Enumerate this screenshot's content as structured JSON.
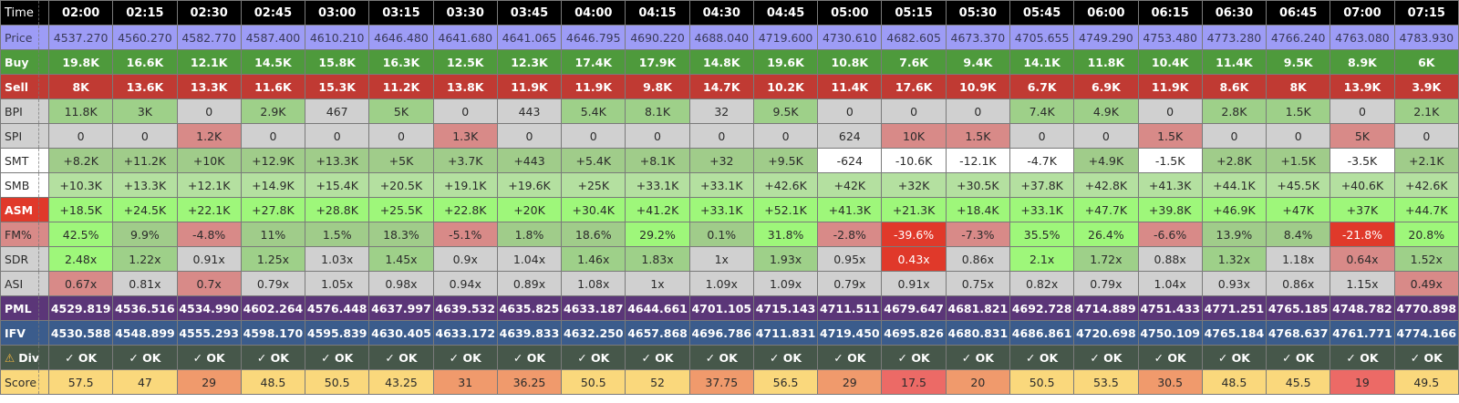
{
  "labels": {
    "time": "Time",
    "price": "Price",
    "buy": "Buy",
    "sell": "Sell",
    "bpi": "BPI",
    "spi": "SPI",
    "smt": "SMT",
    "smb": "SMB",
    "asm": "ASM",
    "fm": "FM%",
    "sdr": "SDR",
    "asi": "ASI",
    "pml": "PML",
    "ifv": "IFV",
    "div": "Div",
    "div_icon": "⚠",
    "score": "Score"
  },
  "time": [
    "02:00",
    "02:15",
    "02:30",
    "02:45",
    "03:00",
    "03:15",
    "03:30",
    "03:45",
    "04:00",
    "04:15",
    "04:30",
    "04:45",
    "05:00",
    "05:15",
    "05:30",
    "05:45",
    "06:00",
    "06:15",
    "06:30",
    "06:45",
    "07:00",
    "07:15"
  ],
  "price": [
    "4537.270",
    "4560.270",
    "4582.770",
    "4587.400",
    "4610.210",
    "4646.480",
    "4641.680",
    "4641.065",
    "4646.795",
    "4690.220",
    "4688.040",
    "4719.600",
    "4730.610",
    "4682.605",
    "4673.370",
    "4705.655",
    "4749.290",
    "4753.480",
    "4773.280",
    "4766.240",
    "4763.080",
    "4783.930"
  ],
  "buy": [
    "19.8K",
    "16.6K",
    "12.1K",
    "14.5K",
    "15.8K",
    "16.3K",
    "12.5K",
    "12.3K",
    "17.4K",
    "17.9K",
    "14.8K",
    "19.6K",
    "10.8K",
    "7.6K",
    "9.4K",
    "14.1K",
    "11.8K",
    "10.4K",
    "11.4K",
    "9.5K",
    "8.9K",
    "6K"
  ],
  "sell": [
    "8K",
    "13.6K",
    "13.3K",
    "11.6K",
    "15.3K",
    "11.2K",
    "13.8K",
    "11.9K",
    "11.9K",
    "9.8K",
    "14.7K",
    "10.2K",
    "11.4K",
    "17.6K",
    "10.9K",
    "6.7K",
    "6.9K",
    "11.9K",
    "8.6K",
    "8K",
    "13.9K",
    "3.9K"
  ],
  "bpi": [
    "11.8K",
    "3K",
    "0",
    "2.9K",
    "467",
    "5K",
    "0",
    "443",
    "5.4K",
    "8.1K",
    "32",
    "9.5K",
    "0",
    "0",
    "0",
    "7.4K",
    "4.9K",
    "0",
    "2.8K",
    "1.5K",
    "0",
    "2.1K"
  ],
  "bpi_color": [
    "g-lgreen",
    "g-lgreen",
    "g-gray",
    "g-lgreen",
    "g-gray",
    "g-lgreen",
    "g-gray",
    "g-gray",
    "g-lgreen",
    "g-lgreen",
    "g-gray",
    "g-lgreen",
    "g-gray",
    "g-gray",
    "g-gray",
    "g-lgreen",
    "g-lgreen",
    "g-gray",
    "g-lgreen",
    "g-lgreen",
    "g-gray",
    "g-lgreen"
  ],
  "spi": [
    "0",
    "0",
    "1.2K",
    "0",
    "0",
    "0",
    "1.3K",
    "0",
    "0",
    "0",
    "0",
    "0",
    "624",
    "10K",
    "1.5K",
    "0",
    "0",
    "1.5K",
    "0",
    "0",
    "5K",
    "0"
  ],
  "spi_color": [
    "g-gray",
    "g-gray",
    "g-pink",
    "g-gray",
    "g-gray",
    "g-gray",
    "g-pink",
    "g-gray",
    "g-gray",
    "g-gray",
    "g-gray",
    "g-gray",
    "g-gray",
    "g-pink",
    "g-pink",
    "g-gray",
    "g-gray",
    "g-pink",
    "g-gray",
    "g-gray",
    "g-pink",
    "g-gray"
  ],
  "smt": [
    "+8.2K",
    "+11.2K",
    "+10K",
    "+12.9K",
    "+13.3K",
    "+5K",
    "+3.7K",
    "+443",
    "+5.4K",
    "+8.1K",
    "+32",
    "+9.5K",
    "-624",
    "-10.6K",
    "-12.1K",
    "-4.7K",
    "+4.9K",
    "-1.5K",
    "+2.8K",
    "+1.5K",
    "-3.5K",
    "+2.1K"
  ],
  "smt_color": [
    "g-mid",
    "g-mid",
    "g-mid",
    "g-mid",
    "g-mid",
    "g-mid",
    "g-mid",
    "g-mid",
    "g-mid",
    "g-mid",
    "g-mid",
    "g-mid",
    "g-white",
    "g-white",
    "g-white",
    "g-white",
    "g-mid",
    "g-white",
    "g-mid",
    "g-mid",
    "g-white",
    "g-mid"
  ],
  "smb": [
    "+10.3K",
    "+13.3K",
    "+12.1K",
    "+14.9K",
    "+15.4K",
    "+20.5K",
    "+19.1K",
    "+19.6K",
    "+25K",
    "+33.1K",
    "+33.1K",
    "+42.6K",
    "+42K",
    "+32K",
    "+30.5K",
    "+37.8K",
    "+42.8K",
    "+41.3K",
    "+44.1K",
    "+45.5K",
    "+40.6K",
    "+42.6K"
  ],
  "asm": [
    "+18.5K",
    "+24.5K",
    "+22.1K",
    "+27.8K",
    "+28.8K",
    "+25.5K",
    "+22.8K",
    "+20K",
    "+30.4K",
    "+41.2K",
    "+33.1K",
    "+52.1K",
    "+41.3K",
    "+21.3K",
    "+18.4K",
    "+33.1K",
    "+47.7K",
    "+39.8K",
    "+46.9K",
    "+47K",
    "+37K",
    "+44.7K"
  ],
  "fm": [
    "42.5%",
    "9.9%",
    "-4.8%",
    "11%",
    "1.5%",
    "18.3%",
    "-5.1%",
    "1.8%",
    "18.6%",
    "29.2%",
    "0.1%",
    "31.8%",
    "-2.8%",
    "-39.6%",
    "-7.3%",
    "35.5%",
    "26.4%",
    "-6.6%",
    "13.9%",
    "8.4%",
    "-21.8%",
    "20.8%"
  ],
  "fm_color": [
    "g-bright",
    "g-mid",
    "g-pink",
    "g-mid",
    "g-mid",
    "g-mid",
    "g-pink",
    "g-mid",
    "g-mid",
    "g-bright",
    "g-mid",
    "g-bright",
    "g-pink",
    "g-red",
    "g-pink",
    "g-bright",
    "g-bright",
    "g-pink",
    "g-mid",
    "g-mid",
    "g-red",
    "g-bright"
  ],
  "sdr": [
    "2.48x",
    "1.22x",
    "0.91x",
    "1.25x",
    "1.03x",
    "1.45x",
    "0.9x",
    "1.04x",
    "1.46x",
    "1.83x",
    "1x",
    "1.93x",
    "0.95x",
    "0.43x",
    "0.86x",
    "2.1x",
    "1.72x",
    "0.88x",
    "1.32x",
    "1.18x",
    "0.64x",
    "1.52x"
  ],
  "sdr_color": [
    "g-bright",
    "g-lgreen",
    "g-gray",
    "g-lgreen",
    "g-gray",
    "g-lgreen",
    "g-gray",
    "g-gray",
    "g-lgreen",
    "g-lgreen",
    "g-gray",
    "g-lgreen",
    "g-gray",
    "g-red",
    "g-gray",
    "g-bright",
    "g-lgreen",
    "g-gray",
    "g-lgreen",
    "g-gray",
    "g-pink",
    "g-lgreen"
  ],
  "asi": [
    "0.67x",
    "0.81x",
    "0.7x",
    "0.79x",
    "1.05x",
    "0.98x",
    "0.94x",
    "0.89x",
    "1.08x",
    "1x",
    "1.09x",
    "1.09x",
    "0.79x",
    "0.91x",
    "0.75x",
    "0.82x",
    "0.79x",
    "1.04x",
    "0.93x",
    "0.86x",
    "1.15x",
    "0.49x"
  ],
  "asi_color": [
    "g-pink",
    "g-gray",
    "g-pink",
    "g-gray",
    "g-gray",
    "g-gray",
    "g-gray",
    "g-gray",
    "g-gray",
    "g-gray",
    "g-gray",
    "g-gray",
    "g-gray",
    "g-gray",
    "g-gray",
    "g-gray",
    "g-gray",
    "g-gray",
    "g-gray",
    "g-gray",
    "g-gray",
    "g-pink"
  ],
  "pml": [
    "4529.819",
    "4536.516",
    "4534.990",
    "4602.264",
    "4576.448",
    "4637.997",
    "4639.532",
    "4635.825",
    "4633.187",
    "4644.661",
    "4701.105",
    "4715.143",
    "4711.511",
    "4679.647",
    "4681.821",
    "4692.728",
    "4714.889",
    "4751.433",
    "4771.251",
    "4765.185",
    "4748.782",
    "4770.898"
  ],
  "ifv": [
    "4530.588",
    "4548.899",
    "4555.293",
    "4598.170",
    "4595.839",
    "4630.405",
    "4633.172",
    "4639.833",
    "4632.250",
    "4657.868",
    "4696.786",
    "4711.831",
    "4719.450",
    "4695.826",
    "4680.831",
    "4686.861",
    "4720.698",
    "4750.109",
    "4765.184",
    "4768.637",
    "4761.771",
    "4774.166"
  ],
  "div": [
    "✓ OK",
    "✓ OK",
    "✓ OK",
    "✓ OK",
    "✓ OK",
    "✓ OK",
    "✓ OK",
    "✓ OK",
    "✓ OK",
    "✓ OK",
    "✓ OK",
    "✓ OK",
    "✓ OK",
    "✓ OK",
    "✓ OK",
    "✓ OK",
    "✓ OK",
    "✓ OK",
    "✓ OK",
    "✓ OK",
    "✓ OK",
    "✓ OK"
  ],
  "score": [
    "57.5",
    "47",
    "29",
    "48.5",
    "50.5",
    "43.25",
    "31",
    "36.25",
    "50.5",
    "52",
    "37.75",
    "56.5",
    "29",
    "17.5",
    "20",
    "50.5",
    "53.5",
    "30.5",
    "48.5",
    "45.5",
    "19",
    "49.5"
  ],
  "score_color": [
    "s-yellow",
    "s-yellow",
    "s-orange",
    "s-yellow",
    "s-yellow",
    "s-yellow",
    "s-orange",
    "s-orange",
    "s-yellow",
    "s-yellow",
    "s-orange",
    "s-yellow",
    "s-orange",
    "s-red",
    "s-orange",
    "s-yellow",
    "s-yellow",
    "s-orange",
    "s-yellow",
    "s-yellow",
    "s-red",
    "s-yellow"
  ],
  "colors": {
    "header_bg": "#000000",
    "price_bg": "#9d9cf6",
    "buy_bg": "#4e9a3c",
    "sell_bg": "#c03a33",
    "pml_bg": "#5b3678",
    "ifv_bg": "#3b5c8c",
    "div_bg": "#46574a",
    "smb_bg": "#b4e0a0",
    "asm_bg": "#9ef77a",
    "score_yellow": "#fad87c",
    "score_orange": "#f09a6c",
    "score_red": "#ec6a66"
  }
}
